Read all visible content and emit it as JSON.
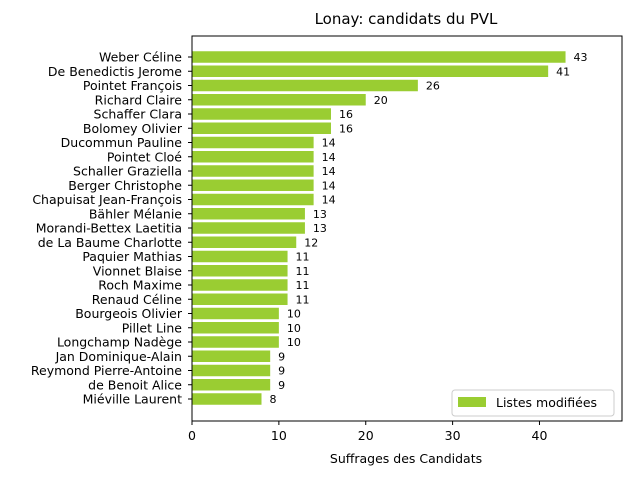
{
  "chart_data": {
    "type": "bar",
    "orientation": "horizontal",
    "title": "Lonay: candidats du PVL",
    "xlabel": "Suffrages des Candidats",
    "ylabel": "",
    "xlim": [
      0,
      49.5
    ],
    "xticks": [
      0,
      10,
      20,
      30,
      40
    ],
    "grid": false,
    "legend_position": "lower-right",
    "bar_color": "#9acd32",
    "categories": [
      "Weber Céline",
      "De Benedictis Jerome",
      "Pointet François",
      "Richard Claire",
      "Schaffer Clara",
      "Bolomey Olivier",
      "Ducommun Pauline",
      "Pointet Cloé",
      "Schaller Graziella",
      "Berger Christophe",
      "Chapuisat Jean-François",
      "Bähler Mélanie",
      "Morandi-Bettex Laetitia",
      "de La Baume Charlotte",
      "Paquier Mathias",
      "Vionnet Blaise",
      "Roch Maxime",
      "Renaud Céline",
      "Bourgeois Olivier",
      "Pillet Line",
      "Longchamp Nadège",
      "Jan Dominique-Alain",
      "Reymond Pierre-Antoine",
      "de Benoit Alice",
      "Miéville Laurent"
    ],
    "series": [
      {
        "name": "Listes modifiées",
        "values": [
          43,
          41,
          26,
          20,
          16,
          16,
          14,
          14,
          14,
          14,
          14,
          13,
          13,
          12,
          11,
          11,
          11,
          11,
          10,
          10,
          10,
          9,
          9,
          9,
          8
        ]
      }
    ]
  }
}
